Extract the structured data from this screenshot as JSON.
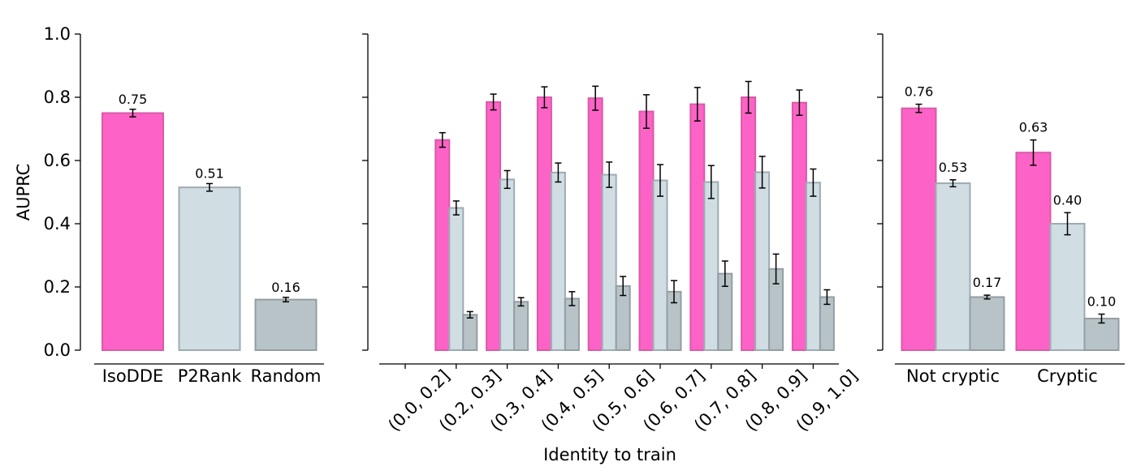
{
  "colors": {
    "IsoDDE": "#fd63c6",
    "P2Rank": "#d0dde2",
    "Random": "#b8c3c8",
    "IsoDDE_edge": "#d95aa8",
    "P2Rank_edge": "#9eabb3",
    "Random_edge": "#939ea3",
    "axis": "#000000"
  },
  "chart_data": [
    {
      "type": "bar",
      "panel": "overall",
      "ylabel": "AUPRC",
      "ylim": [
        0,
        1.0
      ],
      "yticks": [
        "0.0",
        "0.2",
        "0.4",
        "0.6",
        "0.8",
        "1.0"
      ],
      "categories": [
        "IsoDDE",
        "P2Rank",
        "Random"
      ],
      "values": [
        0.75,
        0.515,
        0.16
      ],
      "errors": [
        0.012,
        0.012,
        0.007
      ],
      "value_labels": [
        "0.75",
        "0.51",
        "0.16"
      ]
    },
    {
      "type": "bar",
      "panel": "identity",
      "xlabel": "Identity to train",
      "ylim": [
        0,
        1.0
      ],
      "categories": [
        "(0.0, 0.2]",
        "(0.2, 0.3]",
        "(0.3, 0.4]",
        "(0.4, 0.5]",
        "(0.5, 0.6]",
        "(0.6, 0.7]",
        "(0.7, 0.8]",
        "(0.8, 0.9]",
        "(0.9, 1.0]"
      ],
      "series": [
        {
          "key": "IsoDDE",
          "values": [
            null,
            0.665,
            0.785,
            0.8,
            0.797,
            0.755,
            0.778,
            0.8,
            0.783
          ],
          "errors": [
            null,
            0.023,
            0.025,
            0.033,
            0.038,
            0.053,
            0.053,
            0.05,
            0.04
          ]
        },
        {
          "key": "P2Rank",
          "values": [
            null,
            0.45,
            0.54,
            0.562,
            0.555,
            0.537,
            0.532,
            0.563,
            0.53
          ],
          "errors": [
            null,
            0.022,
            0.028,
            0.03,
            0.04,
            0.05,
            0.052,
            0.05,
            0.043
          ]
        },
        {
          "key": "Random",
          "values": [
            null,
            0.112,
            0.153,
            0.163,
            0.203,
            0.185,
            0.242,
            0.257,
            0.168
          ],
          "errors": [
            null,
            0.01,
            0.013,
            0.022,
            0.03,
            0.035,
            0.04,
            0.047,
            0.023
          ]
        }
      ]
    },
    {
      "type": "bar",
      "panel": "cryptic",
      "ylim": [
        0,
        1.0
      ],
      "categories": [
        "Not cryptic",
        "Cryptic"
      ],
      "series": [
        {
          "key": "IsoDDE",
          "values": [
            0.765,
            0.625
          ],
          "errors": [
            0.013,
            0.04
          ],
          "value_labels": [
            "0.76",
            "0.63"
          ]
        },
        {
          "key": "P2Rank",
          "values": [
            0.528,
            0.4
          ],
          "errors": [
            0.011,
            0.035
          ],
          "value_labels": [
            "0.53",
            "0.40"
          ]
        },
        {
          "key": "Random",
          "values": [
            0.168,
            0.1
          ],
          "errors": [
            0.006,
            0.014
          ],
          "value_labels": [
            "0.17",
            "0.10"
          ]
        }
      ]
    }
  ]
}
